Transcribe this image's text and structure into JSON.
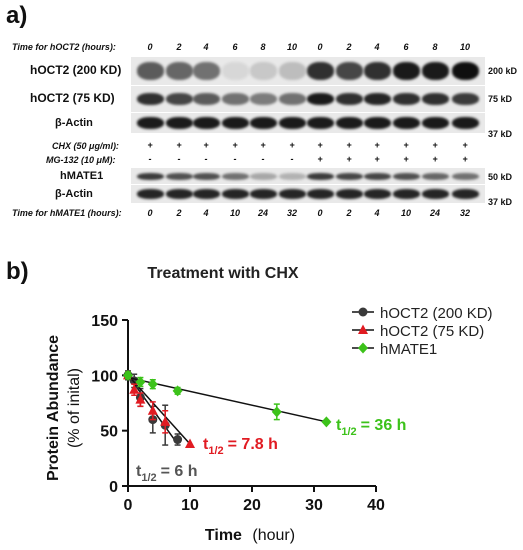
{
  "panel_a": {
    "label": "a)",
    "hoct2_time_label": "Time for hOCT2 (hours):",
    "hoct2_times": [
      "0",
      "2",
      "4",
      "6",
      "8",
      "10",
      "0",
      "2",
      "4",
      "6",
      "8",
      "10"
    ],
    "band_labels": {
      "hoct2_200": "hOCT2 (200 KD)",
      "hoct2_75": "hOCT2 (75 KD)",
      "actin1": "β-Actin",
      "hmate1": "hMATE1",
      "actin2": "β-Actin"
    },
    "kd_labels": {
      "k200": "200 kD",
      "k75": "75 kD",
      "k37a": "37 kD",
      "k50": "50 kD",
      "k37b": "37 kD"
    },
    "chx_label": "CHX (50 μg/ml):",
    "chx_marks": [
      "+",
      "+",
      "+",
      "+",
      "+",
      "+",
      "+",
      "+",
      "+",
      "+",
      "+",
      "+"
    ],
    "mg_label": "MG-132 (10 μM):",
    "mg_marks": [
      "-",
      "-",
      "-",
      "-",
      "-",
      "-",
      "+",
      "+",
      "+",
      "+",
      "+",
      "+"
    ],
    "hmate1_time_label": "Time for hMATE1 (hours):",
    "hmate1_times": [
      "0",
      "2",
      "4",
      "10",
      "24",
      "32",
      "0",
      "2",
      "4",
      "10",
      "24",
      "32"
    ]
  },
  "panel_b": {
    "label": "b)",
    "chart_data": {
      "type": "line",
      "title": "Treatment with CHX",
      "xlabel": "Time",
      "xlabel_unit": "(hour)",
      "ylabel_line1": "Protein Abundance",
      "ylabel_line2": "(% of inital)",
      "xlim": [
        0,
        40
      ],
      "ylim": [
        0,
        150
      ],
      "xticks": [
        "0",
        "10",
        "20",
        "30",
        "40"
      ],
      "yticks": [
        "0",
        "50",
        "100",
        "150"
      ],
      "grid": false,
      "legend_position": "top-right",
      "series": [
        {
          "name": "hOCT2 (200 KD)",
          "color": "#3a3a3a",
          "marker": "circle",
          "x": [
            0,
            1,
            2,
            4,
            6,
            8
          ],
          "y": [
            100,
            95,
            80,
            60,
            55,
            42
          ],
          "err": [
            4,
            6,
            8,
            12,
            18,
            5
          ],
          "fit": [
            [
              0,
              100
            ],
            [
              8,
              38
            ]
          ],
          "half_life": {
            "prefix": "t",
            "sub": "1/2",
            "value": "= 6 h",
            "color": "#555555"
          }
        },
        {
          "name": "hOCT2 (75 KD)",
          "color": "#e11b22",
          "marker": "triangle",
          "x": [
            0,
            1,
            2,
            4,
            6,
            10
          ],
          "y": [
            100,
            87,
            78,
            68,
            58,
            38
          ],
          "err": [
            3,
            5,
            6,
            8,
            10,
            0
          ],
          "fit": [
            [
              0,
              100
            ],
            [
              10,
              38
            ]
          ],
          "half_life": {
            "prefix": "t",
            "sub": "1/2",
            "value": "= 7.8 h",
            "color": "#e11b22"
          }
        },
        {
          "name": "hMATE1",
          "color": "#3cc21a",
          "marker": "diamond",
          "x": [
            0,
            2,
            4,
            8,
            24,
            32
          ],
          "y": [
            100,
            94,
            92,
            86,
            67,
            58
          ],
          "err": [
            3,
            4,
            4,
            3,
            7,
            0
          ],
          "fit": [
            [
              0,
              98
            ],
            [
              32,
              58
            ]
          ],
          "half_life": {
            "prefix": "t",
            "sub": "1/2",
            "value": "= 36 h",
            "color": "#3cc21a"
          }
        }
      ]
    }
  }
}
